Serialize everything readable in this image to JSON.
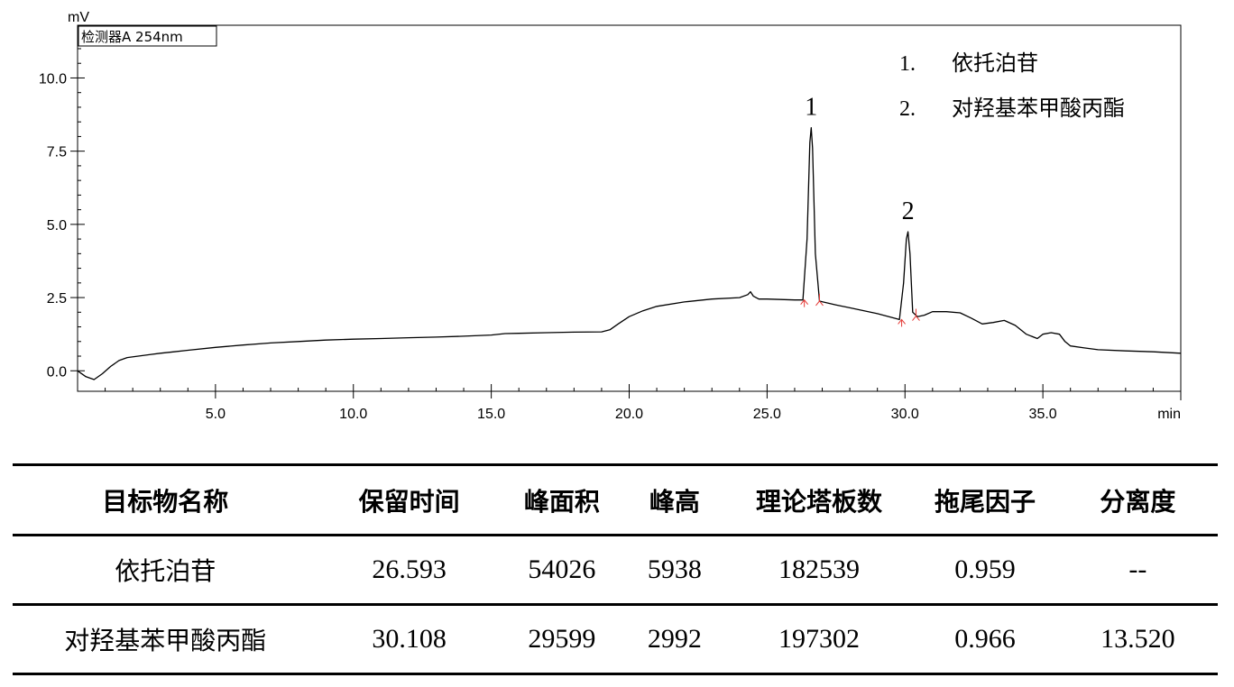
{
  "chart_data": {
    "type": "line",
    "title": "",
    "detector_label": "检测器A 254nm",
    "y_unit": "mV",
    "x_unit": "min",
    "xlim": [
      0,
      40
    ],
    "ylim": [
      -0.7,
      11.8
    ],
    "x_ticks": [
      {
        "value": 5,
        "label": "5.0"
      },
      {
        "value": 10,
        "label": "10.0"
      },
      {
        "value": 15,
        "label": "15.0"
      },
      {
        "value": 20,
        "label": "20.0"
      },
      {
        "value": 25,
        "label": "25.0"
      },
      {
        "value": 30,
        "label": "30.0"
      },
      {
        "value": 35,
        "label": "35.0"
      }
    ],
    "y_ticks": [
      {
        "value": 0,
        "label": "0.0"
      },
      {
        "value": 2.5,
        "label": "2.5"
      },
      {
        "value": 5,
        "label": "5.0"
      },
      {
        "value": 7.5,
        "label": "7.5"
      },
      {
        "value": 10,
        "label": "10.0"
      }
    ],
    "series": [
      {
        "color": "#000000",
        "x": [
          0,
          0.3,
          0.6,
          0.9,
          1.2,
          1.5,
          1.8,
          2.2,
          2.6,
          3.0,
          3.5,
          4.0,
          5.0,
          6.0,
          7.0,
          8.0,
          9.0,
          10.0,
          11.0,
          12.0,
          13.0,
          14.0,
          15.0,
          15.5,
          16.0,
          17.0,
          18.0,
          19.0,
          19.3,
          19.6,
          20.0,
          20.5,
          21.0,
          22.0,
          23.0,
          24.0,
          24.3,
          24.4,
          24.5,
          24.7,
          25.0,
          26.0,
          26.3,
          26.45,
          26.55,
          26.6,
          26.65,
          26.75,
          26.9,
          27.5,
          28.0,
          29.0,
          29.8,
          29.95,
          30.05,
          30.11,
          30.18,
          30.28,
          30.45,
          30.7,
          31.0,
          31.5,
          32.0,
          32.4,
          32.8,
          33.2,
          33.6,
          34.0,
          34.4,
          34.8,
          35.0,
          35.3,
          35.6,
          35.8,
          36.0,
          36.5,
          37.0,
          38.0,
          39.0,
          40.0
        ],
        "y": [
          0.0,
          -0.2,
          -0.3,
          -0.1,
          0.15,
          0.35,
          0.45,
          0.5,
          0.55,
          0.6,
          0.65,
          0.7,
          0.8,
          0.88,
          0.95,
          1.0,
          1.05,
          1.08,
          1.1,
          1.13,
          1.15,
          1.18,
          1.22,
          1.27,
          1.28,
          1.3,
          1.32,
          1.33,
          1.4,
          1.6,
          1.85,
          2.05,
          2.2,
          2.35,
          2.45,
          2.5,
          2.6,
          2.7,
          2.55,
          2.45,
          2.45,
          2.42,
          2.42,
          4.5,
          7.8,
          8.3,
          7.6,
          4.0,
          2.38,
          2.25,
          2.15,
          1.95,
          1.75,
          3.0,
          4.5,
          4.75,
          4.0,
          2.0,
          1.85,
          1.9,
          2.02,
          2.02,
          1.98,
          1.8,
          1.6,
          1.65,
          1.72,
          1.55,
          1.25,
          1.1,
          1.25,
          1.3,
          1.25,
          1.0,
          0.85,
          0.78,
          0.72,
          0.68,
          0.65,
          0.6
        ]
      }
    ],
    "annotations": [
      {
        "label": "1",
        "x": 26.6,
        "y": 8.3
      },
      {
        "label": "2",
        "x": 30.11,
        "y": 4.75
      }
    ],
    "integration_markers": [
      {
        "x": 26.35,
        "y": 2.42,
        "color": "#e53935"
      },
      {
        "x": 26.9,
        "y": 2.38,
        "color": "#e53935"
      },
      {
        "x": 29.88,
        "y": 1.75,
        "color": "#e53935"
      },
      {
        "x": 30.4,
        "y": 1.87,
        "color": "#e53935"
      }
    ],
    "legend": [
      {
        "number": "1.",
        "name": "依托泊苷"
      },
      {
        "number": "2.",
        "name": "对羟基苯甲酸丙酯"
      }
    ],
    "legend_position": "top-right",
    "grid": false
  },
  "table": {
    "headers": [
      "目标物名称",
      "保留时间",
      "峰面积",
      "峰高",
      "理论塔板数",
      "拖尾因子",
      "分离度"
    ],
    "rows": [
      [
        "依托泊苷",
        "26.593",
        "54026",
        "5938",
        "182539",
        "0.959",
        "--"
      ],
      [
        "对羟基苯甲酸丙酯",
        "30.108",
        "29599",
        "2992",
        "197302",
        "0.966",
        "13.520"
      ]
    ]
  }
}
